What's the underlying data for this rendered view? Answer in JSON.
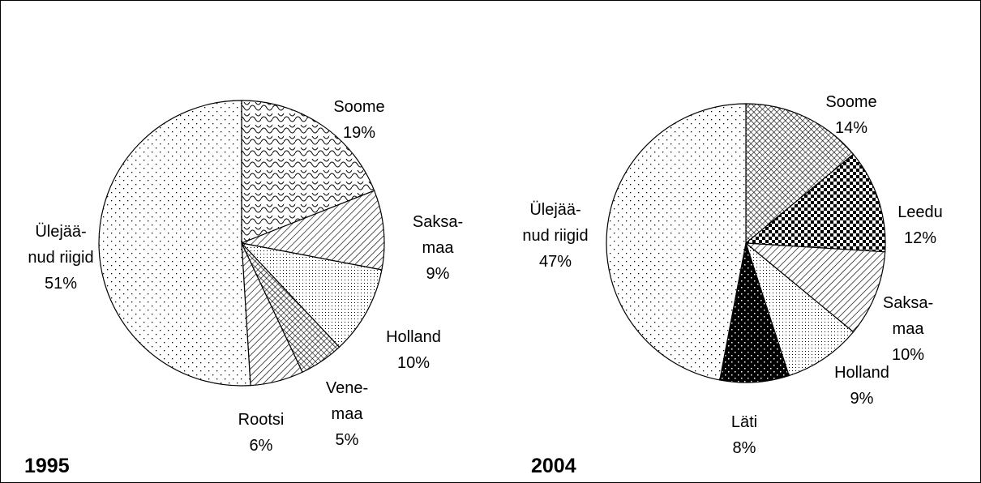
{
  "chart_data": [
    {
      "type": "pie",
      "title": "1995",
      "categories": [
        "Soome",
        "Saksa-\nmaa",
        "Holland",
        "Vene-\nmaa",
        "Rootsi",
        "Ülejää-\nnud riigid"
      ],
      "values": [
        19,
        9,
        10,
        5,
        6,
        51
      ],
      "value_labels": [
        "19%",
        "9%",
        "10%",
        "5%",
        "6%",
        "51%"
      ]
    },
    {
      "type": "pie",
      "title": "2004",
      "categories": [
        "Soome",
        "Leedu",
        "Saksa-\nmaa",
        "Holland",
        "Läti",
        "Ülejää-\nnud riigid"
      ],
      "values": [
        14,
        12,
        10,
        9,
        8,
        47
      ],
      "value_labels": [
        "14%",
        "12%",
        "10%",
        "9%",
        "8%",
        "47%"
      ]
    }
  ]
}
